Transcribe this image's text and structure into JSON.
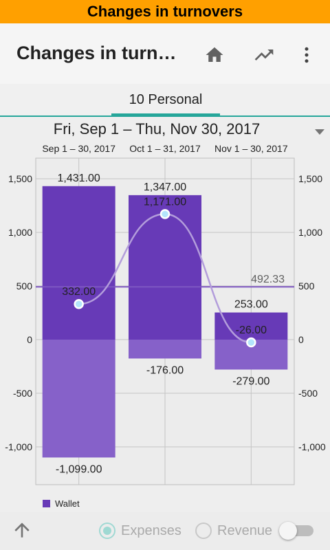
{
  "banner": {
    "text": "Changes in turnovers"
  },
  "appbar": {
    "title": "Changes in turn…",
    "icons": [
      "home-icon",
      "trending-up-icon",
      "more-vert-icon"
    ]
  },
  "tabs": [
    {
      "label": "10 Personal",
      "active": true
    }
  ],
  "date_range": {
    "label": "Fri, Sep 1 – Thu, Nov 30, 2017"
  },
  "colors": {
    "income": "#673ab7",
    "expense": "#8661c9",
    "average": "#7e57c2",
    "line": "#b39ddb",
    "point": "#b3e5fc",
    "accent": "#26a69a",
    "banner": "#ffa000"
  },
  "chart_data": {
    "type": "bar",
    "categories": [
      "Sep 1 – 30, 2017",
      "Oct 1 – 31, 2017",
      "Nov 1 – 30, 2017"
    ],
    "series": [
      {
        "name": "Wallet",
        "kind": "income",
        "values": [
          1431.0,
          1347.0,
          253.0
        ],
        "labels": [
          "1,431.00",
          "1,347.00",
          "253.00"
        ]
      },
      {
        "kind": "expense",
        "values": [
          -1099.0,
          -176.0,
          -279.0
        ],
        "labels": [
          "-1,099.00",
          "-176.00",
          "-279.00"
        ]
      },
      {
        "kind": "net-line",
        "values": [
          332.0,
          1171.0,
          -26.0
        ],
        "labels": [
          "332.00",
          "1,171.00",
          "-26.00"
        ]
      }
    ],
    "average": {
      "value": 492.33,
      "label": "492.33"
    },
    "ylim": [
      -1100,
      1500
    ],
    "yticks": [
      -1000,
      -500,
      0,
      500,
      1000,
      1500
    ],
    "ytick_labels": [
      "-1,000",
      "-500",
      "0",
      "500",
      "1,000",
      "1,500"
    ],
    "grid": true,
    "legend": {
      "position": "bottom-left",
      "entries": [
        "Wallet"
      ]
    }
  },
  "bottom": {
    "expenses_label": "Expenses",
    "revenue_label": "Revenue",
    "expenses_selected": true,
    "revenue_selected": false,
    "switch_on": false
  }
}
